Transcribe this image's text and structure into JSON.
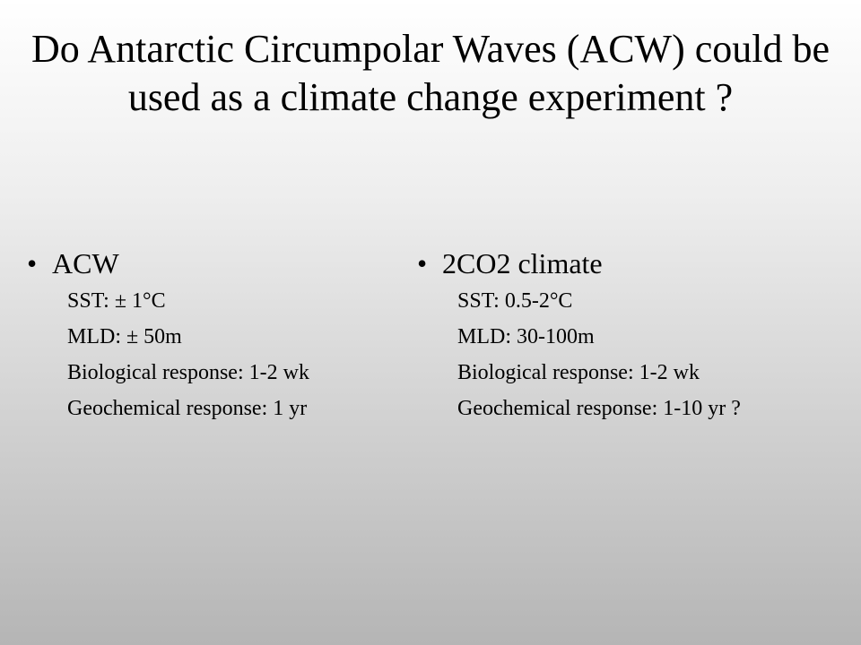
{
  "slide": {
    "title": "Do Antarctic Circumpolar Waves (ACW) could be used as a climate change experiment ?",
    "columns": [
      {
        "heading": "ACW",
        "items": [
          "SST: ± 1°C",
          "MLD: ± 50m",
          "Biological response: 1-2 wk",
          "Geochemical response: 1 yr"
        ]
      },
      {
        "heading": "2CO2 climate",
        "items": [
          "SST: 0.5-2°C",
          "MLD: 30-100m",
          "Biological response: 1-2 wk",
          "Geochemical response: 1-10 yr ?"
        ]
      }
    ]
  }
}
